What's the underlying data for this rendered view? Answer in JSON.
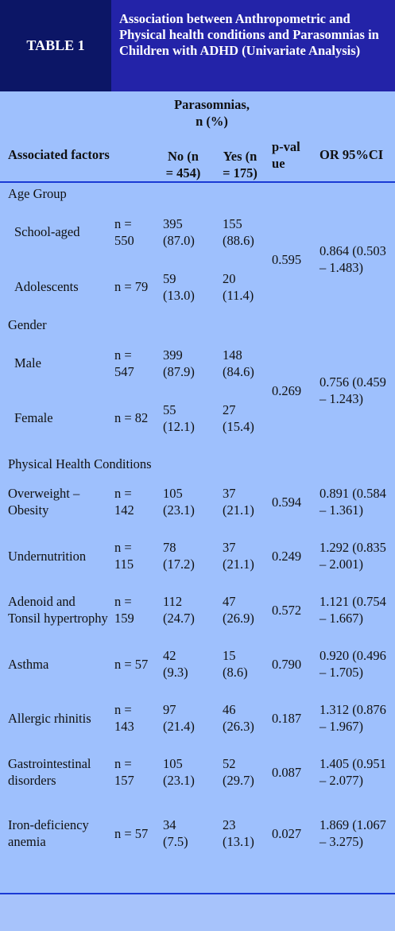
{
  "header": {
    "label": "TABLE 1",
    "title": "Association between Anthropometric and Physical health conditions and Parasomnias in Children with ADHD (Univariate Analysis)"
  },
  "table": {
    "columns": {
      "factor": "Associated factors",
      "parasomnias": "Parasomnias, n (%)",
      "no": "No (n = 454)",
      "yes": "Yes (n = 175)",
      "p": "p-value",
      "or": "OR 95%CI"
    },
    "groups": [
      {
        "label": "Age Group",
        "p": "0.595",
        "or": "0.864 (0.503 – 1.483)",
        "rows": [
          {
            "factor": "School-aged",
            "n": "n = 550",
            "no": "395 (87.0)",
            "yes": "155 (88.6)"
          },
          {
            "factor": "Adolescents",
            "n": "n = 79",
            "no": "59 (13.0)",
            "yes": "20 (11.4)"
          }
        ]
      },
      {
        "label": "Gender",
        "p": "0.269",
        "or": "0.756 (0.459 – 1.243)",
        "rows": [
          {
            "factor": "Male",
            "n": "n = 547",
            "no": "399 (87.9)",
            "yes": "148 (84.6)"
          },
          {
            "factor": "Female",
            "n": "n = 82",
            "no": "55 (12.1)",
            "yes": "27 (15.4)"
          }
        ]
      },
      {
        "label": "Physical Health Conditions",
        "rows": [
          {
            "factor": "Overweight – Obesity",
            "n": "n = 142",
            "no": "105 (23.1)",
            "yes": "37 (21.1)",
            "p": "0.594",
            "or": "0.891 (0.584 – 1.361)"
          },
          {
            "factor": "Undernutrition",
            "n": "n = 115",
            "no": "78 (17.2)",
            "yes": "37 (21.1)",
            "p": "0.249",
            "or": "1.292 (0.835 – 2.001)"
          },
          {
            "factor": "Adenoid and Tonsil hypertrophy",
            "n": "n = 159",
            "no": "112 (24.7)",
            "yes": "47 (26.9)",
            "p": "0.572",
            "or": "1.121 (0.754 – 1.667)"
          },
          {
            "factor": "Asthma",
            "n": "n = 57",
            "no": "42 (9.3)",
            "yes": "15 (8.6)",
            "p": "0.790",
            "or": "0.920 (0.496 – 1.705)"
          },
          {
            "factor": "Allergic rhinitis",
            "n": "n = 143",
            "no": "97 (21.4)",
            "yes": "46 (26.3)",
            "p": "0.187",
            "or": "1.312 (0.876 – 1.967)"
          },
          {
            "factor": "Gastrointestinal disorders",
            "n": "n = 157",
            "no": "105 (23.1)",
            "yes": "52 (29.7)",
            "p": "0.087",
            "or": "1.405 (0.951 – 2.077)"
          },
          {
            "factor": "Iron-deficiency anemia",
            "n": "n = 57",
            "no": "34 (7.5)",
            "yes": "23 (13.1)",
            "p": "0.027",
            "or": "1.869 (1.067 – 3.275)"
          }
        ]
      }
    ]
  }
}
